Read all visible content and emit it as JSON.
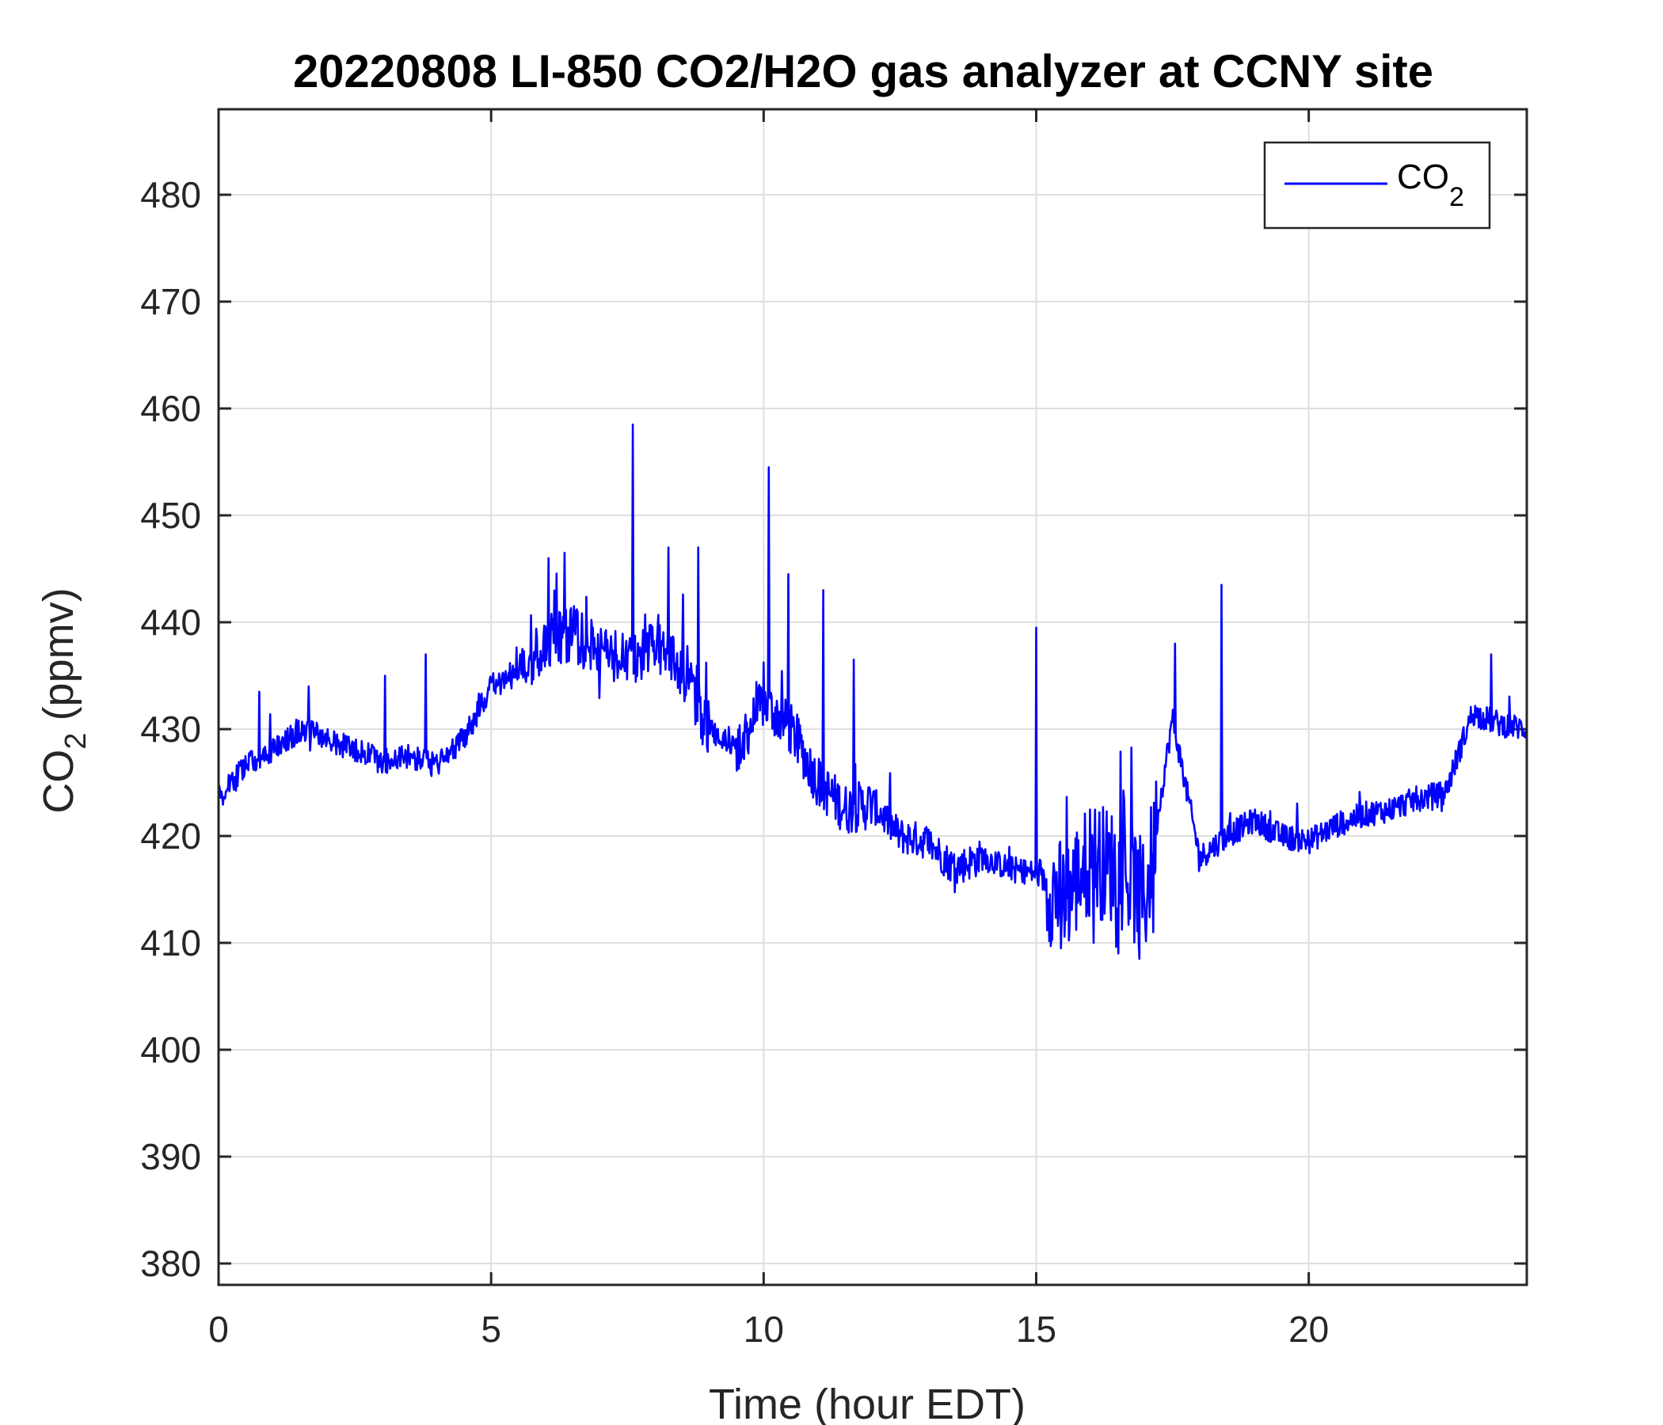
{
  "chart_data": {
    "type": "line",
    "title": "20220808 LI-850 CO2/H2O gas analyzer at CCNY site",
    "xlabel": "Time (hour EDT)",
    "ylabel": {
      "main": "CO",
      "sub": "2",
      "rest": " (ppmv)"
    },
    "xlim": [
      0,
      24
    ],
    "ylim": [
      378,
      488
    ],
    "xticks": [
      0,
      5,
      10,
      15,
      20
    ],
    "yticks": [
      380,
      390,
      400,
      410,
      420,
      430,
      440,
      450,
      460,
      470,
      480
    ],
    "grid": true,
    "legend": {
      "position": "top-right",
      "entries": [
        {
          "main": "CO",
          "sub": "2"
        }
      ]
    },
    "colors": {
      "series": "#0000ff"
    },
    "series": [
      {
        "name": "CO2",
        "x": [
          0.0,
          0.5,
          1.0,
          1.5,
          2.0,
          2.5,
          3.0,
          3.5,
          4.0,
          4.5,
          5.0,
          5.5,
          6.0,
          6.5,
          7.0,
          7.5,
          8.0,
          8.5,
          9.0,
          9.5,
          10.0,
          10.5,
          11.0,
          11.5,
          12.0,
          12.5,
          13.0,
          13.5,
          14.0,
          14.5,
          15.0,
          15.5,
          16.0,
          16.5,
          17.0,
          17.5,
          18.0,
          18.5,
          19.0,
          19.5,
          20.0,
          20.5,
          21.0,
          21.5,
          22.0,
          22.5,
          23.0,
          23.5,
          24.0
        ],
        "y": [
          423.5,
          426.5,
          428.0,
          430.0,
          429.0,
          428.0,
          427.0,
          427.5,
          426.5,
          429.0,
          434.0,
          435.0,
          438.0,
          439.0,
          437.0,
          436.5,
          438.0,
          435.5,
          430.0,
          428.0,
          432.5,
          430.0,
          425.0,
          422.5,
          423.0,
          420.0,
          419.5,
          417.0,
          418.0,
          417.0,
          416.5,
          414.0,
          418.0,
          417.0,
          414.0,
          431.0,
          418.0,
          420.0,
          421.5,
          420.0,
          419.5,
          421.0,
          422.0,
          422.5,
          423.5,
          424.0,
          431.5,
          430.5,
          430.0
        ]
      }
    ],
    "spikes": [
      {
        "x": 0.75,
        "y": 433.5
      },
      {
        "x": 1.65,
        "y": 434.0
      },
      {
        "x": 3.05,
        "y": 435.0
      },
      {
        "x": 3.8,
        "y": 437.0
      },
      {
        "x": 6.05,
        "y": 446.0
      },
      {
        "x": 6.35,
        "y": 446.5
      },
      {
        "x": 7.6,
        "y": 458.5
      },
      {
        "x": 8.25,
        "y": 447.0
      },
      {
        "x": 8.8,
        "y": 447.0
      },
      {
        "x": 10.1,
        "y": 454.5
      },
      {
        "x": 10.45,
        "y": 444.5
      },
      {
        "x": 11.1,
        "y": 443.0
      },
      {
        "x": 11.65,
        "y": 436.5
      },
      {
        "x": 15.0,
        "y": 439.5
      },
      {
        "x": 17.55,
        "y": 438.0
      },
      {
        "x": 18.4,
        "y": 443.5
      },
      {
        "x": 23.35,
        "y": 437.0
      }
    ],
    "dips": [
      {
        "x": 15.45,
        "y": 409.5
      },
      {
        "x": 16.05,
        "y": 410.0
      },
      {
        "x": 16.9,
        "y": 408.5
      },
      {
        "x": 17.15,
        "y": 411.0
      }
    ]
  }
}
